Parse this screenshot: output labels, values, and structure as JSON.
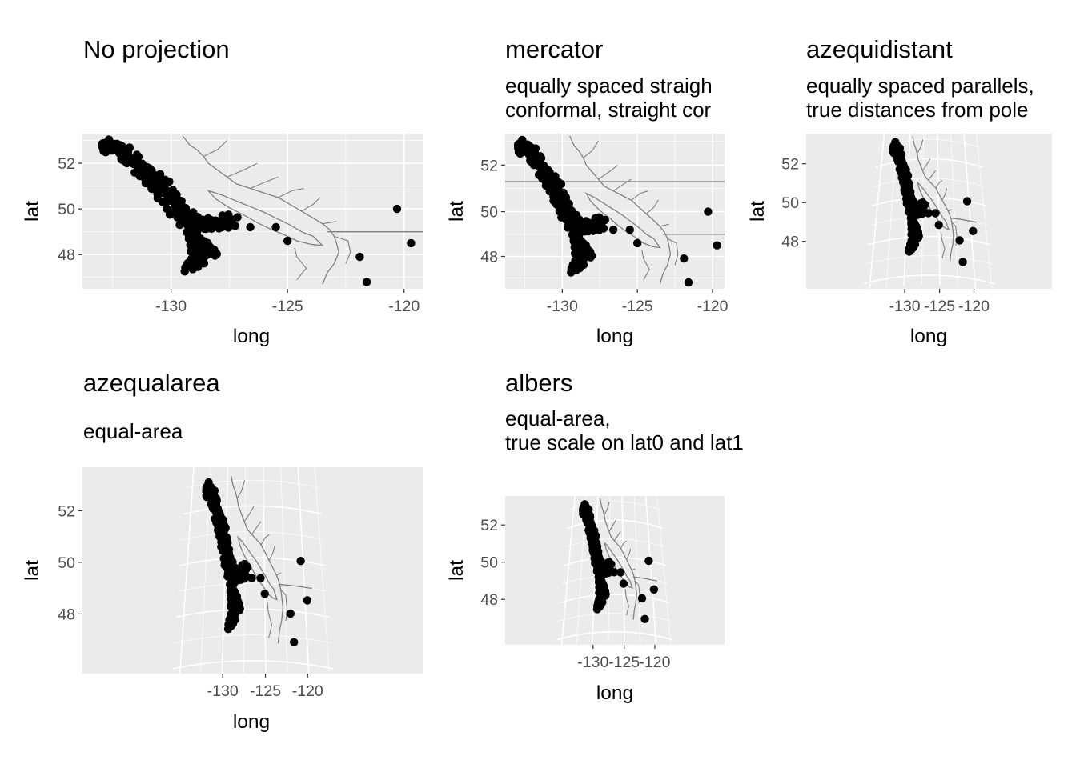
{
  "chart_data": [
    {
      "type": "scatter",
      "title": "No projection",
      "subtitle": [],
      "xlabel": "long",
      "ylabel": "lat",
      "xlim": [
        -133.8,
        -119.2
      ],
      "ylim": [
        46.5,
        53.3
      ],
      "xticks": [
        -130,
        -125,
        -120
      ],
      "yticks": [
        48,
        50,
        52
      ],
      "xtick_labels": [
        "-130",
        "-125",
        "-120"
      ],
      "ytick_labels": [
        "48",
        "50",
        "52"
      ],
      "grid": true,
      "outlier_points": [
        {
          "x": -130.2,
          "y": 50.3
        },
        {
          "x": -126.6,
          "y": 49.2
        },
        {
          "x": -125.5,
          "y": 49.2
        },
        {
          "x": -125.0,
          "y": 48.6
        },
        {
          "x": -121.9,
          "y": 47.9
        },
        {
          "x": -121.6,
          "y": 46.8
        },
        {
          "x": -120.3,
          "y": 50.0
        },
        {
          "x": -119.7,
          "y": 48.5
        }
      ]
    },
    {
      "type": "scatter",
      "title": "mercator",
      "subtitle": [
        "equally spaced straigh",
        "conformal, straight cor"
      ],
      "xlabel": "long",
      "ylabel": "lat",
      "xlim": [
        -133.8,
        -119.2
      ],
      "ylim": [
        46.5,
        53.3
      ],
      "xticks": [
        -130,
        -125,
        -120
      ],
      "yticks": [
        48,
        50,
        52
      ],
      "xtick_labels": [
        "-130",
        "-125",
        "-120"
      ],
      "ytick_labels": [
        "48",
        "50",
        "52"
      ],
      "grid": true
    },
    {
      "type": "scatter",
      "title": "azequidistant",
      "subtitle": [
        "equally spaced parallels,",
        "true distances from pole"
      ],
      "xlabel": "long",
      "ylabel": "lat",
      "xlim": [
        -133.8,
        -119.2
      ],
      "ylim": [
        46.5,
        53.3
      ],
      "xticks": [
        -130,
        -125,
        -120
      ],
      "yticks": [
        48,
        50,
        52
      ],
      "xtick_labels": [
        "-130",
        "-125",
        "-120"
      ],
      "ytick_labels": [
        "48",
        "50",
        "52"
      ],
      "grid": true
    },
    {
      "type": "scatter",
      "title": "azequalarea",
      "subtitle": [
        "equal-area"
      ],
      "xlabel": "long",
      "ylabel": "lat",
      "xlim": [
        -133.8,
        -119.2
      ],
      "ylim": [
        46.5,
        53.3
      ],
      "xticks": [
        -130,
        -125,
        -120
      ],
      "yticks": [
        48,
        50,
        52
      ],
      "xtick_labels": [
        "-130",
        "-125",
        "-120"
      ],
      "ytick_labels": [
        "48",
        "50",
        "52"
      ],
      "grid": true
    },
    {
      "type": "scatter",
      "title": "albers",
      "subtitle": [
        "equal-area,",
        "true scale on lat0 and lat1"
      ],
      "xlabel": "long",
      "ylabel": "lat",
      "xlim": [
        -133.8,
        -119.2
      ],
      "ylim": [
        46.5,
        53.3
      ],
      "xticks": [
        -130,
        -125,
        -120
      ],
      "yticks": [
        48,
        50,
        52
      ],
      "xtick_labels": [
        "-130",
        "-125",
        "-120"
      ],
      "ytick_labels": [
        "48",
        "50",
        "52"
      ],
      "grid": true
    }
  ],
  "colors": {
    "panel_background": "#ebebeb",
    "grid": "#ffffff",
    "coastline": "#808080",
    "points": "#000000",
    "tick_text": "#4d4d4d"
  }
}
